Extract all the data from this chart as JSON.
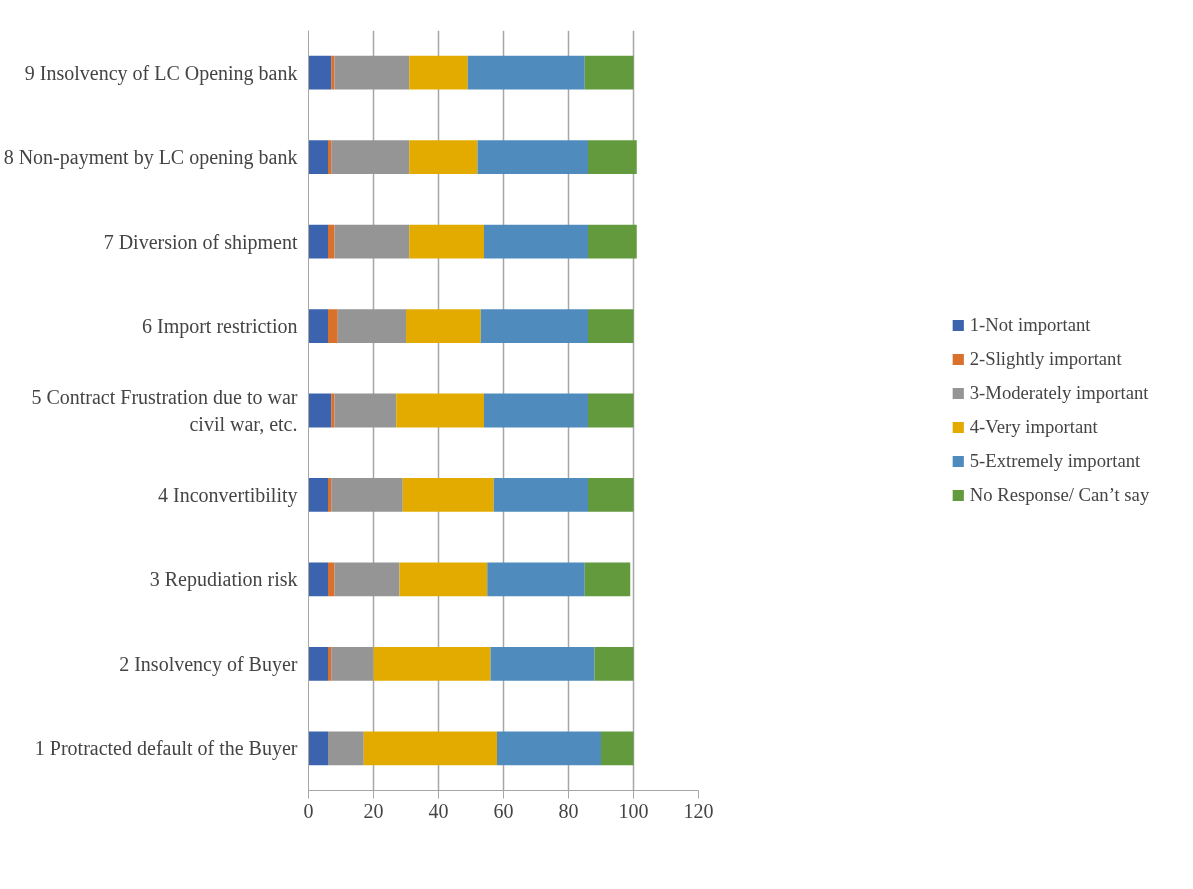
{
  "chart_data": {
    "type": "bar",
    "orientation": "horizontal",
    "stacked": true,
    "categories": [
      "9 Insolvency of LC Opening bank",
      "8 Non-payment by LC opening bank",
      "7 Diversion of shipment",
      "6 Import restriction",
      "5 Contract Frustration due to war civil war, etc.",
      "4 Inconvertibility",
      "3 Repudiation risk",
      "2 Insolvency of Buyer",
      "1 Protracted default of the Buyer"
    ],
    "series": [
      {
        "name": "1-Not important",
        "color": "#3c63ae",
        "values": [
          7,
          6,
          6,
          6,
          7,
          6,
          6,
          6,
          6
        ]
      },
      {
        "name": "2-Slightly important",
        "color": "#d9702b",
        "values": [
          1,
          1,
          2,
          3,
          1,
          1,
          2,
          1,
          0
        ]
      },
      {
        "name": "3-Moderately important",
        "color": "#959595",
        "values": [
          23,
          24,
          23,
          21,
          19,
          22,
          20,
          13,
          11
        ]
      },
      {
        "name": "4-Very important",
        "color": "#e3ab00",
        "values": [
          18,
          21,
          23,
          23,
          27,
          28,
          27,
          36,
          41
        ]
      },
      {
        "name": "5-Extremely important",
        "color": "#4f8bbd",
        "values": [
          36,
          34,
          32,
          33,
          32,
          29,
          30,
          32,
          32
        ]
      },
      {
        "name": "No Response/ Can’t say",
        "color": "#639a3e",
        "values": [
          15,
          15,
          15,
          14,
          14,
          14,
          14,
          12,
          10
        ]
      }
    ],
    "xlim": [
      0,
      120
    ],
    "xticks": [
      0,
      20,
      40,
      60,
      80,
      100,
      120
    ],
    "grid": "x",
    "legend": "right"
  }
}
